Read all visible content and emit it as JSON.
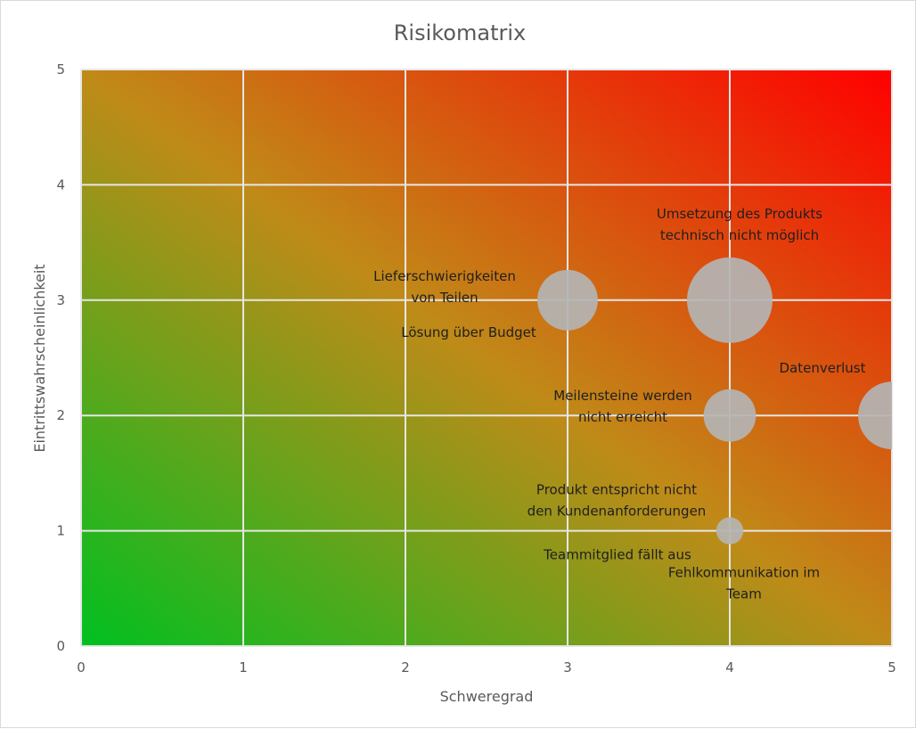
{
  "chart_data": {
    "type": "bubble",
    "title": "Risikomatrix",
    "xlabel": "Schweregrad",
    "ylabel": "Eintrittswahrscheinlichkeit",
    "xlim": [
      0,
      5
    ],
    "ylim": [
      0,
      5
    ],
    "x_ticks": [
      "0",
      "1",
      "2",
      "3",
      "4",
      "5"
    ],
    "y_ticks": [
      "0",
      "1",
      "2",
      "3",
      "4",
      "5"
    ],
    "grid": true,
    "background_gradient": {
      "low": "#00c020",
      "mid": "#c08a18",
      "high": "#ff0000"
    },
    "bubble_color": "#b4b4b4",
    "points": [
      {
        "x": 3,
        "y": 3,
        "size": 2,
        "labels": [
          "Lieferschwierigkeiten von Teilen",
          "Lösung über Budget"
        ]
      },
      {
        "x": 4,
        "y": 3,
        "size": 4,
        "labels": [
          "Umsetzung des Produkts technisch nicht möglich"
        ]
      },
      {
        "x": 4,
        "y": 2,
        "size": 1.5,
        "labels": [
          "Meilensteine werden nicht erreicht"
        ]
      },
      {
        "x": 5,
        "y": 2,
        "size": 2.5,
        "labels": [
          "Datenverlust"
        ]
      },
      {
        "x": 4,
        "y": 1,
        "size": 0.4,
        "labels": [
          "Produkt entspricht nicht den Kundenanforderungen",
          "Teammitglied fällt aus",
          "Fehlkommunikation im Team"
        ]
      }
    ]
  }
}
